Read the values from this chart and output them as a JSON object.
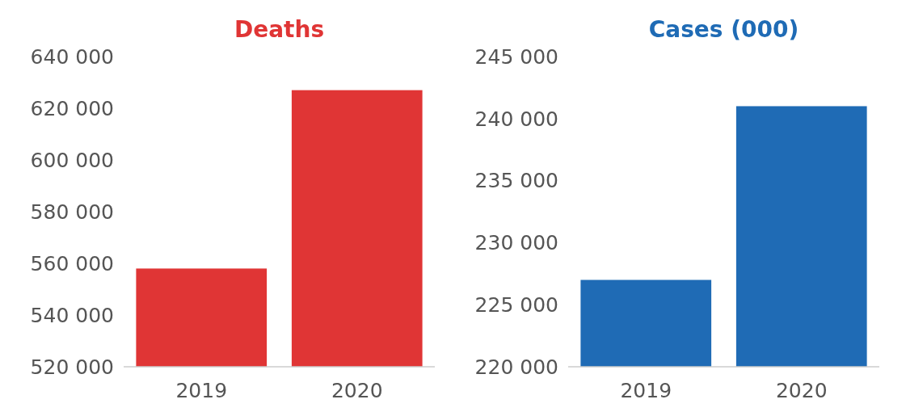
{
  "chart_data": [
    {
      "type": "bar",
      "title": "Deaths",
      "categories": [
        "2019",
        "2020"
      ],
      "values": [
        558000,
        627000
      ],
      "color": "#e03535",
      "ylim": [
        520000,
        640000
      ],
      "yticks": [
        {
          "value": 520000,
          "label": "520 000"
        },
        {
          "value": 540000,
          "label": "540 000"
        },
        {
          "value": 560000,
          "label": "560 000"
        },
        {
          "value": 580000,
          "label": "580 000"
        },
        {
          "value": 600000,
          "label": "600 000"
        },
        {
          "value": 620000,
          "label": "620 000"
        },
        {
          "value": 640000,
          "label": "640 000"
        }
      ],
      "grid": false
    },
    {
      "type": "bar",
      "title": "Cases (000)",
      "categories": [
        "2019",
        "2020"
      ],
      "values": [
        227000,
        241000
      ],
      "color": "#1f6bb5",
      "ylim": [
        220000,
        245000
      ],
      "yticks": [
        {
          "value": 220000,
          "label": "220 000"
        },
        {
          "value": 225000,
          "label": "225 000"
        },
        {
          "value": 230000,
          "label": "230 000"
        },
        {
          "value": 235000,
          "label": "235 000"
        },
        {
          "value": 240000,
          "label": "240 000"
        },
        {
          "value": 245000,
          "label": "245 000"
        }
      ],
      "grid": false
    }
  ]
}
